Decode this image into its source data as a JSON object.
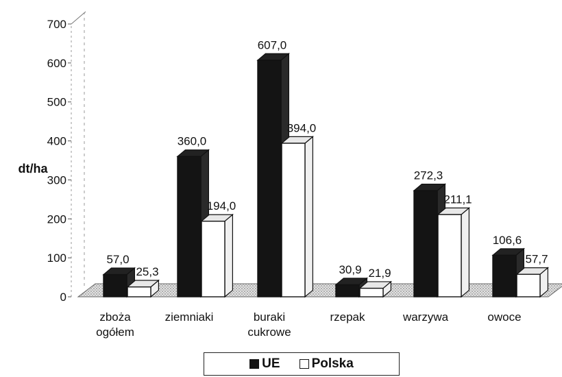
{
  "chart_data": {
    "type": "bar",
    "ylabel": "dt/ha",
    "ylim": [
      0,
      700
    ],
    "yticks": [
      0,
      100,
      200,
      300,
      400,
      500,
      600,
      700
    ],
    "categories": [
      [
        "zboża",
        "ogółem"
      ],
      [
        "ziemniaki"
      ],
      [
        "buraki",
        "cukrowe"
      ],
      [
        "rzepak"
      ],
      [
        "warzywa"
      ],
      [
        "owoce"
      ]
    ],
    "series": [
      {
        "name": "UE",
        "color": "#141414",
        "values": [
          57.0,
          360.0,
          607.0,
          30.9,
          272.3,
          106.6
        ],
        "labels": [
          "57,0",
          "360,0",
          "607,0",
          "30,9",
          "272,3",
          "106,6"
        ]
      },
      {
        "name": "Polska",
        "color": "#ffffff",
        "values": [
          25.3,
          194.0,
          394.0,
          21.9,
          211.1,
          57.7
        ],
        "labels": [
          "25,3",
          "194,0",
          "394,0",
          "21,9",
          "211,1",
          "57,7"
        ]
      }
    ],
    "legend_position": "bottom",
    "grid": false
  }
}
